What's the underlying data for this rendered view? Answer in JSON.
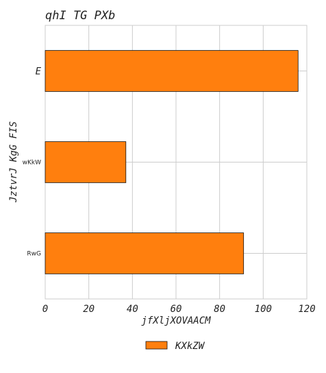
{
  "chart_data": {
    "type": "bar",
    "orientation": "horizontal",
    "title": "qhI TG PXb",
    "xlabel": "jfXljXOVAACM",
    "ylabel": "JztvrJ KgG FIS",
    "categories": [
      "E",
      "wKkW",
      "RwG"
    ],
    "series": [
      {
        "name": "KXkZW",
        "values": [
          116,
          37,
          91
        ],
        "color": "#ff7f0e"
      }
    ],
    "xlim": [
      0,
      120
    ],
    "xticks": [
      "0",
      "20",
      "40",
      "60",
      "80",
      "100",
      "120"
    ],
    "grid": true,
    "legend": "bottom-center"
  }
}
